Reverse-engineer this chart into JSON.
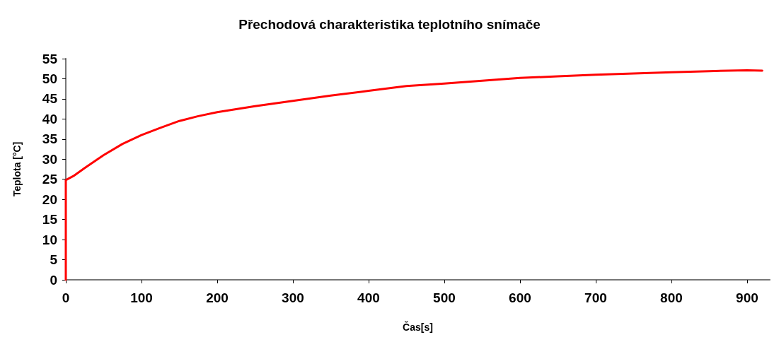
{
  "chart_data": {
    "type": "line",
    "title": "Přechodová charakteristika teplotního snímače",
    "xlabel": "Čas[s]",
    "ylabel": "Teplota [°C]",
    "x": [
      0,
      0,
      10,
      25,
      50,
      75,
      100,
      125,
      150,
      175,
      200,
      250,
      300,
      350,
      400,
      450,
      500,
      550,
      600,
      650,
      700,
      750,
      800,
      850,
      900,
      920
    ],
    "series": [
      {
        "color": "#ff0000",
        "values": [
          0,
          24.8,
          25.8,
          27.8,
          31,
          33.8,
          36,
          37.8,
          39.5,
          40.7,
          41.7,
          43.2,
          44.5,
          45.8,
          47,
          48.2,
          48.8,
          49.5,
          50.2,
          50.6,
          51,
          51.3,
          51.6,
          51.9,
          52.1,
          52
        ]
      }
    ],
    "xlim": [
      0,
      930
    ],
    "xticks": [
      0,
      100,
      200,
      300,
      400,
      500,
      600,
      700,
      800,
      900
    ],
    "ylim": [
      0,
      55
    ],
    "yticks": [
      0,
      5,
      10,
      15,
      20,
      25,
      30,
      35,
      40,
      45,
      50,
      55
    ],
    "marker": "none",
    "line_style": "solid"
  }
}
